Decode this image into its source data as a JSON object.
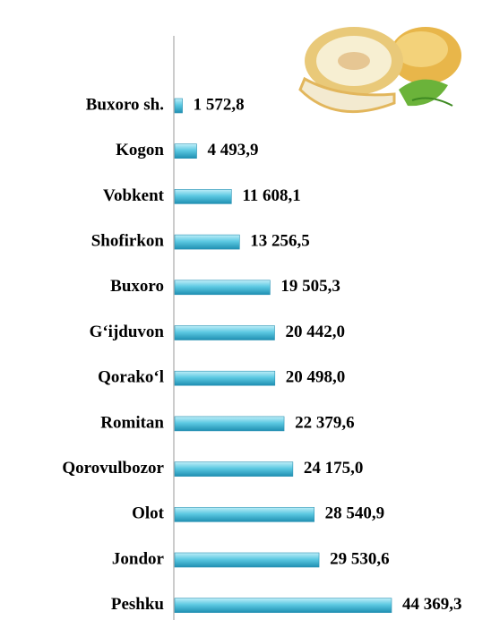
{
  "chart_data": {
    "type": "bar",
    "categories": [
      "Buxoro sh.",
      "Kogon",
      "Vobkent",
      "Shofirkon",
      "Buxoro",
      "G‘ijduvon",
      "Qorako‘l",
      "Romitan",
      "Qorovulbozor",
      "Olot",
      "Jondor",
      "Peshku"
    ],
    "values": [
      1572.8,
      4493.9,
      11608.1,
      13256.5,
      19505.3,
      20442.0,
      20498.0,
      22379.6,
      24175.0,
      28540.9,
      29530.6,
      44369.3
    ],
    "value_labels": [
      "1 572,8",
      "4 493,9",
      "11 608,1",
      "13 256,5",
      "19 505,3",
      "20 442,0",
      "20 498,0",
      "22 379,6",
      "24 175,0",
      "28 540,9",
      "29 530,6",
      "44 369,3"
    ],
    "color": "#5cc9e2"
  }
}
